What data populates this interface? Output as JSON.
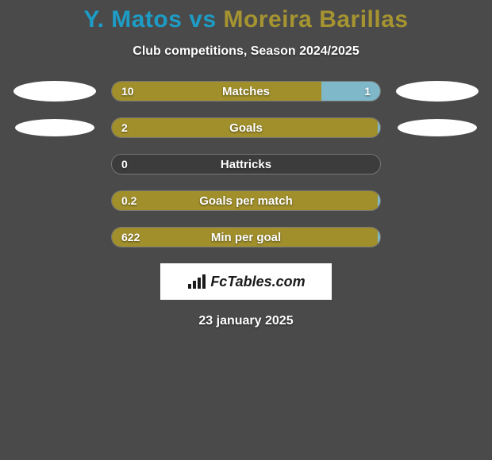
{
  "background_color": "#4a4a4a",
  "title": {
    "player1": "Y. Matos",
    "vs": " vs ",
    "player2": "Moreira Barillas",
    "player1_color": "#1d9cc6",
    "player2_color": "#a69431"
  },
  "subtitle": "Club competitions, Season 2024/2025",
  "colors": {
    "bar_player1": "#a08f2b",
    "bar_player2": "#7fb8c9",
    "bar_empty": "#3c3c3c",
    "oval": "#ffffff"
  },
  "rows": [
    {
      "label": "Matches",
      "left_val": "10",
      "right_val": "1",
      "left_pct": 78,
      "right_pct": 22,
      "show_right_val": true,
      "oval_left_w": 104,
      "oval_left_h": 26,
      "oval_right_w": 104,
      "oval_right_h": 26
    },
    {
      "label": "Goals",
      "left_val": "2",
      "right_val": "",
      "left_pct": 99,
      "right_pct": 1,
      "show_right_val": false,
      "oval_left_w": 100,
      "oval_left_h": 22,
      "oval_right_w": 100,
      "oval_right_h": 22
    },
    {
      "label": "Hattricks",
      "left_val": "0",
      "right_val": "",
      "left_pct": 0,
      "right_pct": 0,
      "show_right_val": false,
      "oval_left_w": 0,
      "oval_left_h": 0,
      "oval_right_w": 0,
      "oval_right_h": 0
    },
    {
      "label": "Goals per match",
      "left_val": "0.2",
      "right_val": "",
      "left_pct": 99,
      "right_pct": 1,
      "show_right_val": false,
      "oval_left_w": 0,
      "oval_left_h": 0,
      "oval_right_w": 0,
      "oval_right_h": 0
    },
    {
      "label": "Min per goal",
      "left_val": "622",
      "right_val": "",
      "left_pct": 99,
      "right_pct": 1,
      "show_right_val": false,
      "oval_left_w": 0,
      "oval_left_h": 0,
      "oval_right_w": 0,
      "oval_right_h": 0
    }
  ],
  "logo_text": "FcTables.com",
  "date": "23 january 2025"
}
